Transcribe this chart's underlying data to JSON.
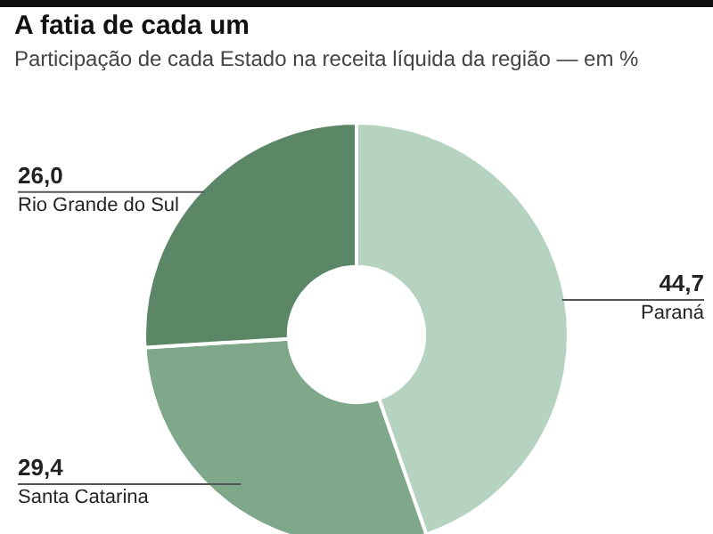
{
  "chart_data": {
    "type": "donut",
    "title": "A fatia de cada um",
    "subtitle": "Participação de cada Estado na receita líquida da região — em %",
    "categories": [
      "Paraná",
      "Santa Catarina",
      "Rio Grande do Sul"
    ],
    "values": [
      44.7,
      29.4,
      26.0
    ],
    "value_labels": [
      "44,7",
      "29,4",
      "26,0"
    ],
    "colors": [
      "#b5d3c0",
      "#7fa88a",
      "#5b8767"
    ],
    "legend": false
  }
}
